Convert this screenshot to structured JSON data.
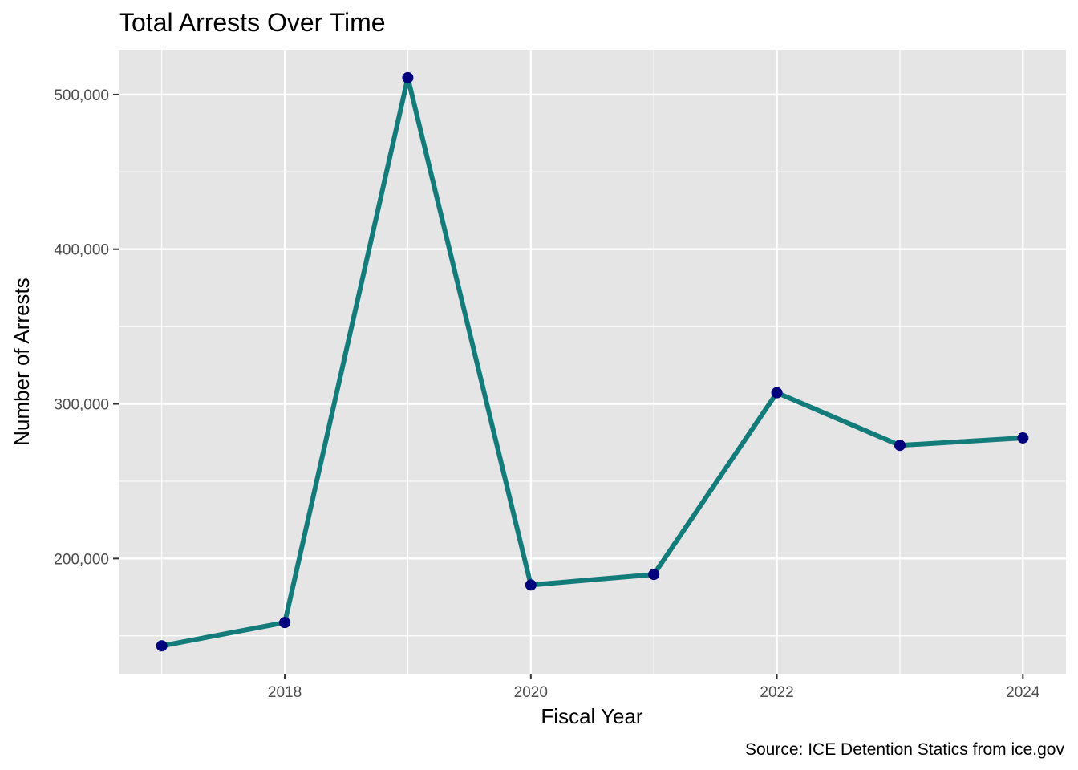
{
  "chart_data": {
    "type": "line",
    "title": "Total Arrests Over Time",
    "xlabel": "Fiscal Year",
    "ylabel": "Number of Arrests",
    "caption": "Source: ICE Detention Statics from ice.gov",
    "x": [
      2017,
      2018,
      2019,
      2020,
      2021,
      2022,
      2023,
      2024
    ],
    "series": [
      {
        "values": [
          143500,
          158600,
          510900,
          182900,
          189700,
          307200,
          273200,
          278000
        ]
      }
    ],
    "xlim": [
      2016.65,
      2024.35
    ],
    "ylim": [
      125500,
      529000
    ],
    "x_ticks": [
      2018,
      2020,
      2022,
      2024
    ],
    "x_tick_labels": [
      "2018",
      "2020",
      "2022",
      "2024"
    ],
    "x_minor_ticks": [
      2017,
      2019,
      2021,
      2023
    ],
    "y_ticks": [
      200000,
      300000,
      400000,
      500000
    ],
    "y_tick_labels": [
      "200,000",
      "300,000",
      "400,000",
      "500,000"
    ],
    "y_minor_ticks": [
      150000,
      250000,
      350000,
      450000
    ],
    "grid": true,
    "legend": "none",
    "colors": {
      "panel_background": "#e5e5e5",
      "grid": "#ffffff",
      "line": "#147b7b",
      "points": "#00007f"
    }
  }
}
